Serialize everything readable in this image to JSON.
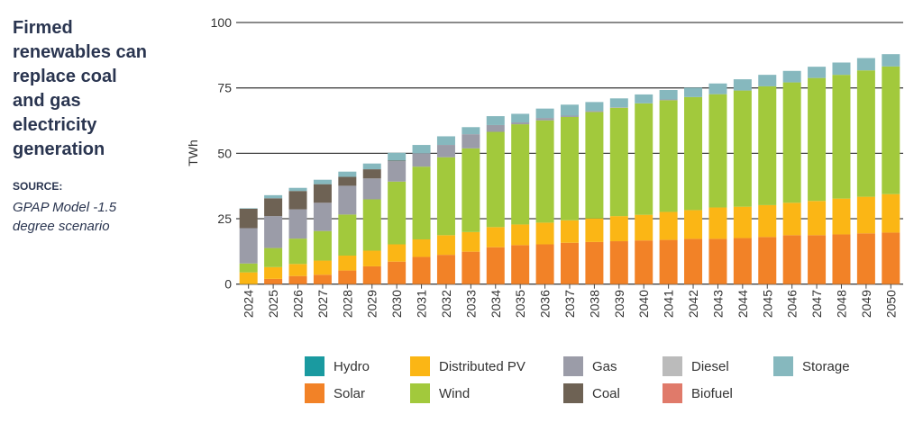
{
  "title": "Firmed renewables can replace coal and gas electricity generation",
  "source_label": "SOURCE:",
  "source": "GPAP Model -1.5 degree scenario",
  "chart_data": {
    "type": "bar",
    "stacked": true,
    "ylabel": "TWh",
    "xlabel": "",
    "ylim": [
      0,
      100
    ],
    "yticks": [
      0,
      25,
      50,
      75,
      100
    ],
    "grid": "horizontal",
    "legend_placement": "bottom",
    "categories": [
      "2024",
      "2025",
      "2026",
      "2027",
      "2028",
      "2029",
      "2030",
      "2031",
      "2032",
      "2033",
      "2034",
      "2035",
      "2036",
      "2037",
      "2038",
      "2039",
      "2040",
      "2041",
      "2042",
      "2043",
      "2044",
      "2045",
      "2046",
      "2047",
      "2048",
      "2049",
      "2050"
    ],
    "series": [
      {
        "name": "Hydro",
        "color": "#1a9aa0",
        "values": [
          0,
          0,
          0,
          0,
          0,
          0,
          0,
          0,
          0,
          0,
          0,
          0,
          0,
          0,
          0,
          0,
          0,
          0,
          0,
          0,
          0,
          0,
          0,
          0,
          0,
          0,
          0
        ]
      },
      {
        "name": "Solar",
        "color": "#f28227",
        "values": [
          0,
          2.0,
          3.1,
          3.6,
          5.2,
          6.8,
          8.6,
          10.4,
          11.2,
          12.4,
          14.1,
          14.9,
          15.2,
          15.8,
          16.1,
          16.4,
          16.7,
          16.9,
          17.3,
          17.3,
          17.6,
          18.0,
          18.7,
          18.7,
          19.0,
          19.4,
          19.7
        ]
      },
      {
        "name": "Distributed PV",
        "color": "#fbb615",
        "values": [
          4.5,
          4.5,
          4.6,
          5.4,
          5.7,
          6.0,
          6.6,
          6.7,
          7.5,
          7.5,
          7.7,
          7.9,
          8.3,
          8.6,
          9.0,
          9.6,
          9.8,
          10.7,
          11.0,
          12.0,
          12.0,
          12.2,
          12.4,
          13.1,
          13.7,
          14.0,
          14.7
        ]
      },
      {
        "name": "Wind",
        "color": "#a2c93c",
        "values": [
          3.4,
          7.3,
          9.7,
          11.3,
          15.7,
          19.6,
          24.0,
          27.8,
          29.8,
          32.0,
          36.4,
          38.3,
          39.1,
          39.5,
          40.7,
          41.4,
          42.6,
          42.7,
          43.2,
          43.3,
          44.4,
          45.4,
          46.0,
          47.0,
          47.3,
          48.3,
          48.8
        ]
      },
      {
        "name": "Gas",
        "color": "#9b9ca8",
        "values": [
          13.5,
          12.2,
          11.2,
          10.8,
          11.0,
          8.0,
          7.8,
          5.1,
          4.7,
          5.4,
          2.6,
          0.7,
          0.9,
          0.5,
          0.4,
          0.2,
          0,
          0.3,
          0,
          0,
          0,
          0,
          0,
          0,
          0,
          0,
          0
        ]
      },
      {
        "name": "Coal",
        "color": "#6e6254",
        "values": [
          7.4,
          6.8,
          7.0,
          7.1,
          3.4,
          3.5,
          0.2,
          0,
          0,
          0,
          0,
          0,
          0,
          0,
          0,
          0,
          0,
          0,
          0,
          0,
          0,
          0,
          0,
          0,
          0,
          0,
          0
        ]
      },
      {
        "name": "Diesel",
        "color": "#bbbbbb",
        "values": [
          0,
          0,
          0,
          0,
          0,
          0,
          0,
          0,
          0,
          0,
          0,
          0,
          0,
          0,
          0,
          0,
          0,
          0,
          0,
          0,
          0,
          0,
          0,
          0,
          0,
          0,
          0
        ]
      },
      {
        "name": "Biofuel",
        "color": "#e07a6a",
        "values": [
          0,
          0,
          0,
          0,
          0,
          0,
          0,
          0,
          0,
          0,
          0,
          0,
          0,
          0,
          0,
          0,
          0,
          0,
          0,
          0,
          0,
          0,
          0,
          0,
          0,
          0,
          0
        ]
      },
      {
        "name": "Storage",
        "color": "#86b8be",
        "values": [
          0.2,
          1.2,
          1.2,
          1.7,
          2.0,
          2.2,
          3.0,
          3.2,
          3.3,
          2.7,
          3.4,
          3.3,
          3.6,
          4.2,
          3.4,
          3.4,
          3.4,
          3.6,
          3.6,
          4.1,
          4.3,
          4.4,
          4.4,
          4.3,
          4.7,
          4.7,
          4.7
        ]
      }
    ],
    "legend_order": [
      "Hydro",
      "Distributed PV",
      "Gas",
      "Diesel",
      "Storage",
      "Solar",
      "Wind",
      "Coal",
      "Biofuel"
    ]
  }
}
